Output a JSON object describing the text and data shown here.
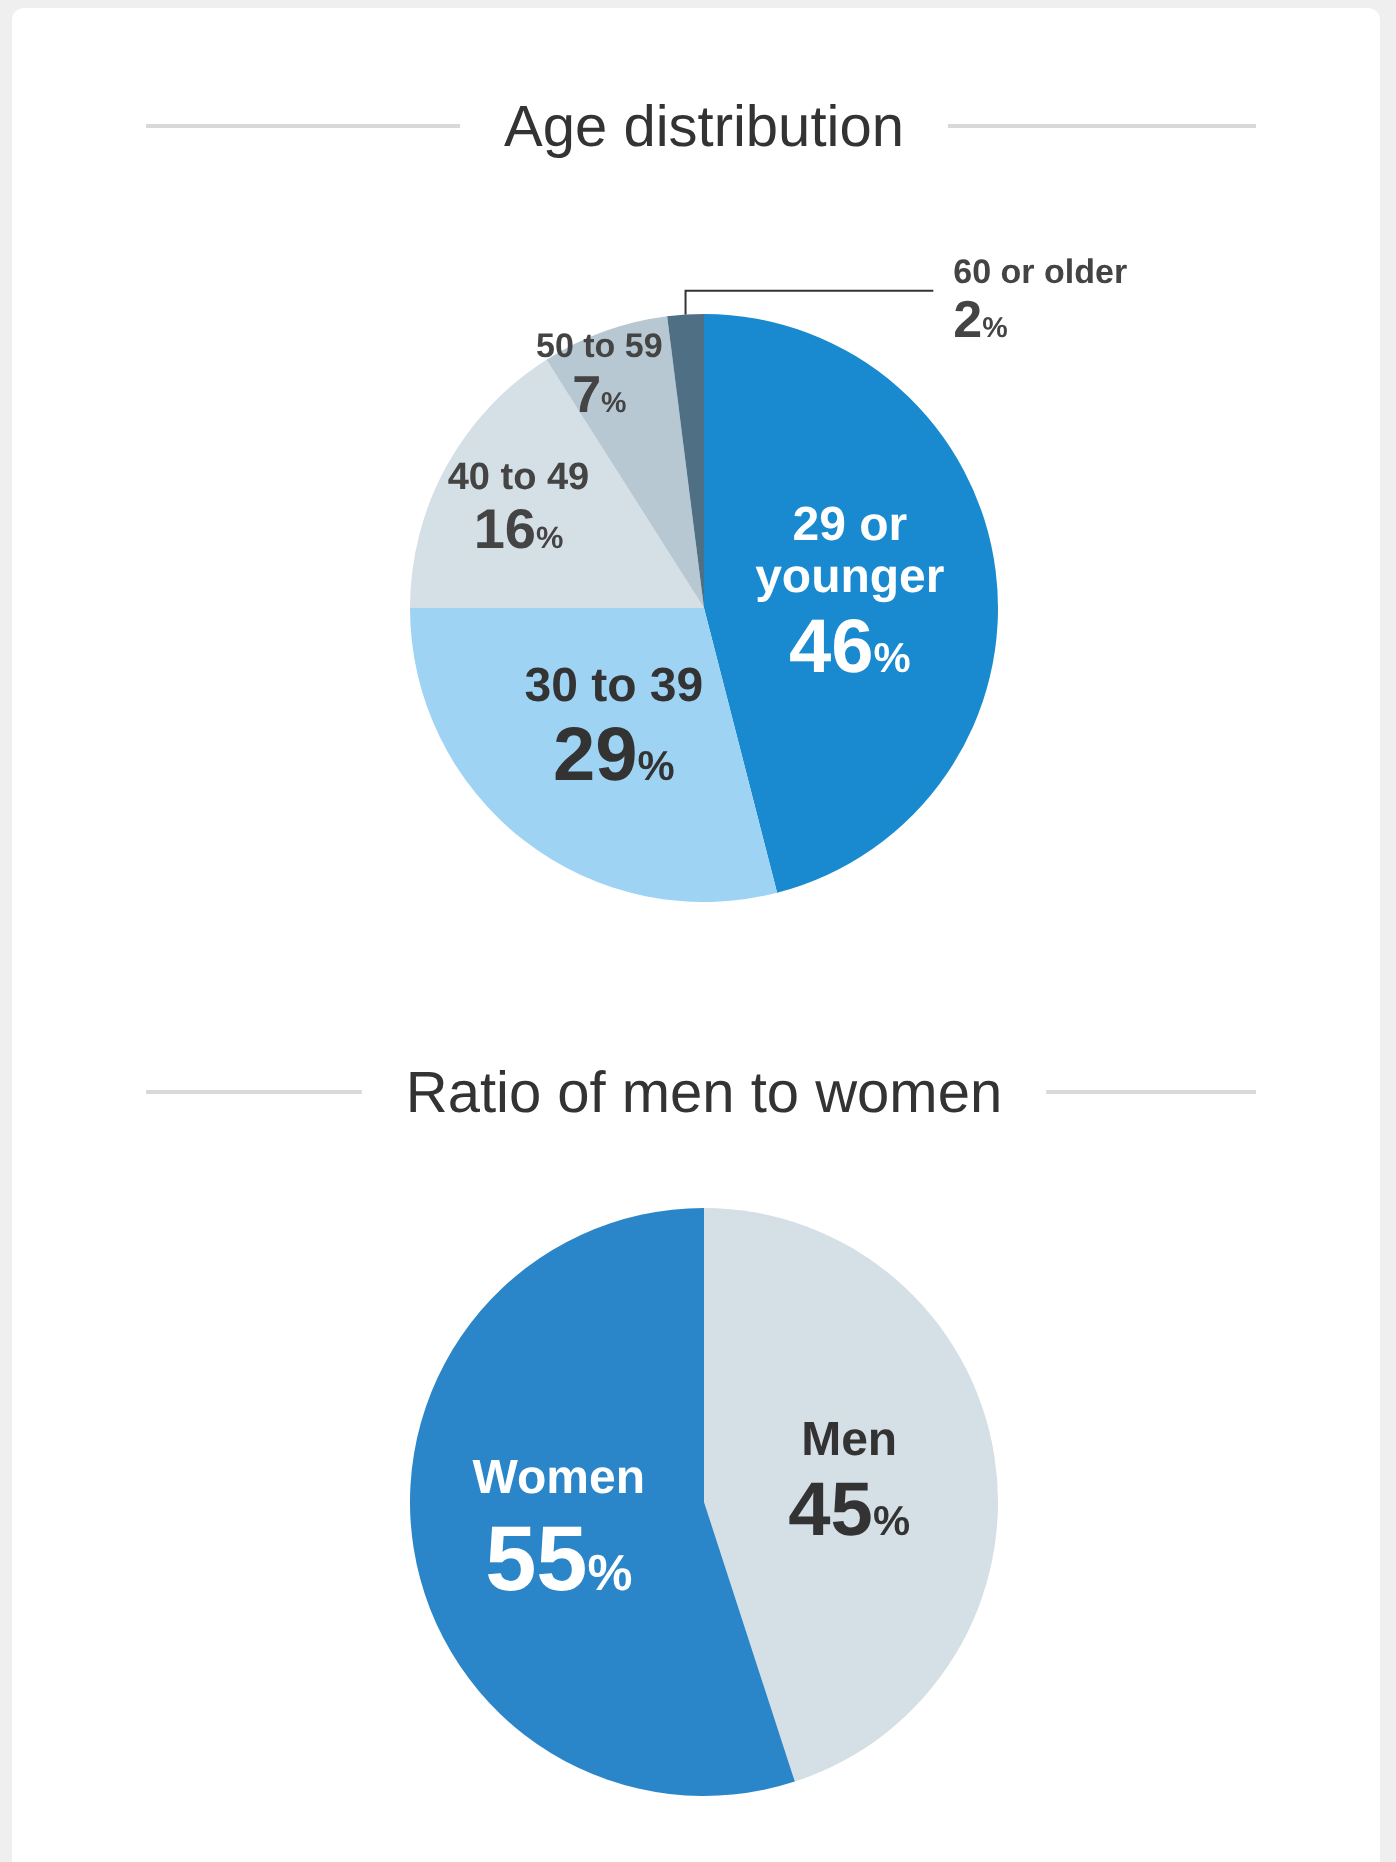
{
  "chart_data": [
    {
      "type": "pie",
      "title": "Age distribution",
      "categories": [
        "29 or younger",
        "30 to 39",
        "40 to 49",
        "50 to 59",
        "60 or older"
      ],
      "values": [
        46,
        29,
        16,
        7,
        2
      ],
      "colors": [
        "#1a8ad0",
        "#9fd3f3",
        "#d5dfe6",
        "#b8c8d3",
        "#4f6f85"
      ],
      "value_labels": [
        "46%",
        "29%",
        "16%",
        "7%",
        "2%"
      ]
    },
    {
      "type": "pie",
      "title": "Ratio of men to women",
      "categories": [
        "Men",
        "Women"
      ],
      "values": [
        45,
        55
      ],
      "colors": [
        "#d5dfe6",
        "#2a86c9"
      ],
      "value_labels": [
        "45%",
        "55%"
      ]
    }
  ]
}
